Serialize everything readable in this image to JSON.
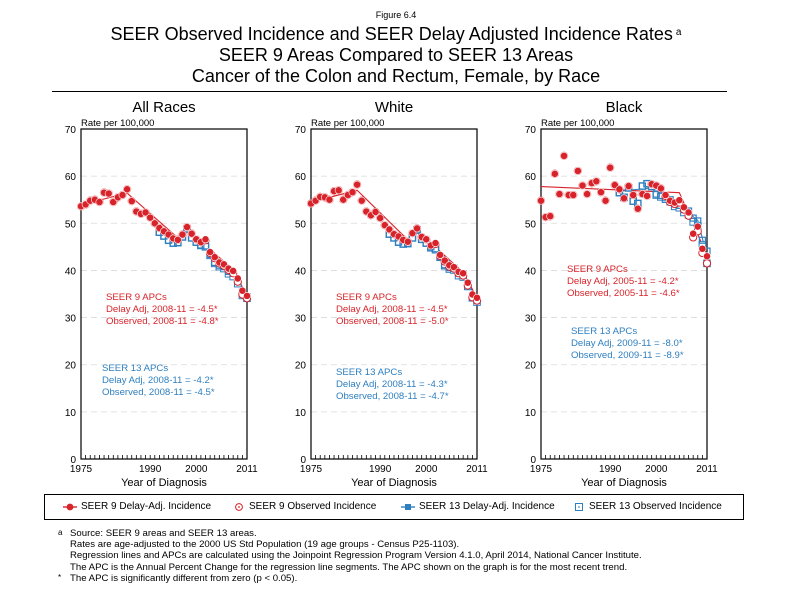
{
  "figure_label": "Figure 6.4",
  "title": {
    "line1": "SEER Observed Incidence and SEER Delay Adjusted Incidence Rates",
    "line1_sup": "a",
    "line2": "SEER 9 Areas Compared to SEER 13 Areas",
    "line3": "Cancer of the Colon and Rectum, Female, by Race"
  },
  "colors": {
    "seer9": "#d8232a",
    "seer13": "#2e7fc0",
    "grid": "#d9d9d9"
  },
  "legend": [
    {
      "label": "SEER 9 Delay-Adj. Incidence",
      "marker": "filled-circle",
      "series": "seer9"
    },
    {
      "label": "SEER 9 Observed Incidence",
      "marker": "open-circle",
      "series": "seer9"
    },
    {
      "label": "SEER 13 Delay-Adj. Incidence",
      "marker": "filled-square",
      "series": "seer13"
    },
    {
      "label": "SEER 13 Observed Incidence",
      "marker": "open-square",
      "series": "seer13"
    }
  ],
  "footnotes": [
    {
      "mark": "a",
      "text": "Source: SEER 9 areas and SEER 13 areas."
    },
    {
      "mark": "",
      "text": "Rates are age-adjusted to the 2000 US Std Population (19 age groups - Census P25-1103)."
    },
    {
      "mark": "",
      "text": "Regression lines and APCs are calculated using the Joinpoint Regression Program Version 4.1.0, April 2014, National Cancer Institute."
    },
    {
      "mark": "",
      "text": "The APC is the Annual Percent Change for the regression line segments. The APC shown on the graph is for the most recent trend."
    },
    {
      "mark": "*",
      "text": "The APC is significantly different from zero (p < 0.05)."
    }
  ],
  "chart_data": [
    {
      "type": "scatter",
      "title": "All Races",
      "xlabel": "Year of Diagnosis",
      "ylabel": "Rate per 100,000",
      "xlim": [
        1975,
        2011
      ],
      "ylim": [
        0,
        70
      ],
      "yticks": [
        0,
        10,
        20,
        30,
        40,
        50,
        60,
        70
      ],
      "xtick_labels": [
        1975,
        1990,
        2000,
        2011
      ],
      "grid": true,
      "seer9_start": 1975,
      "seer13_start": 1992,
      "series": [
        {
          "name": "SEER 9 Delay-Adj. Incidence",
          "values": [
            53.6,
            54.0,
            54.8,
            55.0,
            54.5,
            56.5,
            56.3,
            54.5,
            55.5,
            56.0,
            57.2,
            54.7,
            52.5,
            52.0,
            52.3,
            51.2,
            50.0,
            49.0,
            48.3,
            47.6,
            46.8,
            46.5,
            47.6,
            49.2,
            47.8,
            46.6,
            46.0,
            46.6,
            43.9,
            42.8,
            41.7,
            41.3,
            40.4,
            39.9,
            38.3,
            35.7,
            34.6
          ]
        },
        {
          "name": "SEER 9 Observed Incidence",
          "values": [
            53.6,
            54.0,
            54.8,
            55.0,
            54.5,
            56.5,
            56.3,
            54.5,
            55.5,
            56.0,
            57.2,
            54.7,
            52.5,
            52.0,
            52.3,
            51.2,
            50.0,
            49.0,
            48.3,
            47.6,
            46.8,
            46.5,
            47.6,
            49.2,
            47.8,
            46.6,
            46.0,
            46.4,
            43.7,
            42.6,
            41.5,
            41.0,
            40.1,
            39.4,
            37.6,
            34.9,
            34.1
          ]
        },
        {
          "name": "SEER 13 Delay-Adj. Incidence",
          "values": [
            48.1,
            47.3,
            46.4,
            45.8,
            45.9,
            47.1,
            48.8,
            46.9,
            46.0,
            45.4,
            45.2,
            43.4,
            41.7,
            41.1,
            40.8,
            39.8,
            39.4,
            37.9,
            35.4,
            34.4
          ]
        },
        {
          "name": "SEER 13 Observed Incidence",
          "values": [
            48.1,
            47.3,
            46.4,
            45.8,
            45.9,
            47.1,
            48.8,
            46.9,
            46.0,
            45.3,
            45.0,
            43.2,
            41.5,
            40.8,
            40.4,
            39.3,
            38.7,
            37.2,
            34.7,
            34.1
          ]
        }
      ],
      "regression_seer9": [
        [
          1975,
          53.9
        ],
        [
          1985,
          56.4
        ],
        [
          1996,
          46.9
        ],
        [
          1998,
          48.7
        ],
        [
          2008,
          40.2
        ],
        [
          2011,
          34.6
        ]
      ],
      "regression_seer13": [
        [
          1992,
          48.1
        ],
        [
          1996,
          46.0
        ],
        [
          1998,
          48.3
        ],
        [
          2008,
          39.8
        ],
        [
          2011,
          34.5
        ]
      ],
      "annotations": {
        "seer9": [
          "SEER 9 APCs",
          "Delay Adj, 2008-11 = -4.5*",
          "Observed, 2008-11 = -4.8*"
        ],
        "seer13": [
          "SEER 13 APCs",
          "Delay Adj, 2008-11 = -4.2*",
          "Observed, 2008-11 = -4.5*"
        ]
      }
    },
    {
      "type": "scatter",
      "title": "White",
      "xlabel": "Year of Diagnosis",
      "ylabel": "Rate per 100,000",
      "xlim": [
        1975,
        2011
      ],
      "ylim": [
        0,
        70
      ],
      "yticks": [
        0,
        10,
        20,
        30,
        40,
        50,
        60,
        70
      ],
      "xtick_labels": [
        1975,
        1990,
        2000,
        2011
      ],
      "grid": true,
      "seer9_start": 1975,
      "seer13_start": 1992,
      "series": [
        {
          "name": "SEER 9 Delay-Adj. Incidence",
          "values": [
            54.2,
            54.8,
            55.6,
            55.5,
            55.0,
            56.8,
            57.0,
            55.0,
            56.0,
            56.6,
            58.2,
            54.8,
            52.5,
            51.7,
            52.4,
            51.1,
            49.6,
            48.7,
            47.7,
            47.2,
            46.5,
            46.1,
            47.9,
            48.9,
            47.1,
            46.6,
            45.3,
            45.8,
            43.3,
            42.1,
            41.1,
            40.7,
            39.7,
            39.4,
            37.4,
            34.9,
            34.2
          ]
        },
        {
          "name": "SEER 9 Observed Incidence",
          "values": [
            54.2,
            54.8,
            55.6,
            55.5,
            55.0,
            56.8,
            57.0,
            55.0,
            56.0,
            56.6,
            58.2,
            54.8,
            52.5,
            51.7,
            52.4,
            51.1,
            49.6,
            48.7,
            47.7,
            47.2,
            46.5,
            46.1,
            47.9,
            48.9,
            47.1,
            46.6,
            45.3,
            45.6,
            43.1,
            41.9,
            40.8,
            40.4,
            39.4,
            38.9,
            36.8,
            34.3,
            33.6
          ]
        },
        {
          "name": "SEER 13 Delay-Adj. Incidence",
          "values": [
            47.7,
            46.9,
            46.0,
            45.6,
            45.7,
            46.9,
            48.6,
            46.6,
            45.8,
            45.0,
            44.6,
            43.0,
            41.2,
            40.6,
            40.5,
            39.4,
            39.2,
            37.2,
            34.6,
            33.7
          ]
        },
        {
          "name": "SEER 13 Observed Incidence",
          "values": [
            47.7,
            46.9,
            46.0,
            45.6,
            45.7,
            46.9,
            48.6,
            46.6,
            45.8,
            44.8,
            44.4,
            42.8,
            41.0,
            40.3,
            40.1,
            38.9,
            38.6,
            36.6,
            34.2,
            33.3
          ]
        }
      ],
      "regression_seer9": [
        [
          1975,
          54.5
        ],
        [
          1985,
          57.0
        ],
        [
          1996,
          46.5
        ],
        [
          1998,
          48.5
        ],
        [
          2008,
          39.6
        ],
        [
          2011,
          34.2
        ]
      ],
      "regression_seer13": [
        [
          1992,
          47.8
        ],
        [
          1996,
          45.8
        ],
        [
          1998,
          48.0
        ],
        [
          2008,
          39.4
        ],
        [
          2011,
          33.9
        ]
      ],
      "annotations": {
        "seer9": [
          "SEER 9 APCs",
          "Delay Adj, 2008-11 = -4.5*",
          "Observed, 2008-11 = -5.0*"
        ],
        "seer13": [
          "SEER 13 APCs",
          "Delay Adj, 2008-11 = -4.3*",
          "Observed, 2008-11 = -4.7*"
        ]
      }
    },
    {
      "type": "scatter",
      "title": "Black",
      "xlabel": "Year of Diagnosis",
      "ylabel": "Rate per 100,000",
      "xlim": [
        1975,
        2011
      ],
      "ylim": [
        0,
        70
      ],
      "yticks": [
        0,
        10,
        20,
        30,
        40,
        50,
        60,
        70
      ],
      "xtick_labels": [
        1975,
        1990,
        2000,
        2011
      ],
      "grid": true,
      "seer9_start": 1975,
      "seer13_start": 1992,
      "series": [
        {
          "name": "SEER 9 Delay-Adj. Incidence",
          "values": [
            54.8,
            51.3,
            51.5,
            60.5,
            56.2,
            64.3,
            56.0,
            56.0,
            61.1,
            58.0,
            56.2,
            58.5,
            58.9,
            56.6,
            54.8,
            61.8,
            58.1,
            57.2,
            55.3,
            57.9,
            56.0,
            53.1,
            56.2,
            55.8,
            58.3,
            58.0,
            57.4,
            56.0,
            54.8,
            54.4,
            54.9,
            53.4,
            52.3,
            47.8,
            49.3,
            44.6,
            43.0
          ]
        },
        {
          "name": "SEER 9 Observed Incidence",
          "values": [
            54.8,
            51.3,
            51.5,
            60.5,
            56.2,
            64.3,
            56.0,
            56.0,
            61.1,
            58.0,
            56.2,
            58.5,
            58.9,
            56.6,
            54.8,
            61.8,
            58.1,
            57.2,
            55.3,
            57.9,
            56.0,
            53.1,
            56.2,
            55.8,
            58.3,
            58.0,
            57.4,
            55.8,
            54.5,
            54.1,
            54.4,
            52.9,
            51.6,
            47.0,
            48.3,
            43.7,
            41.5
          ]
        },
        {
          "name": "SEER 13 Delay-Adj. Incidence",
          "values": [
            56.5,
            55.5,
            57.5,
            54.7,
            54.2,
            57.9,
            58.4,
            57.8,
            56.2,
            55.9,
            55.4,
            55.0,
            54.1,
            53.8,
            52.9,
            52.6,
            51.1,
            50.5,
            46.4,
            44.1
          ]
        },
        {
          "name": "SEER 13 Observed Incidence",
          "values": [
            56.5,
            55.5,
            57.5,
            54.7,
            54.2,
            57.9,
            58.4,
            57.8,
            56.0,
            55.6,
            55.1,
            54.6,
            53.6,
            53.3,
            52.3,
            51.8,
            50.3,
            49.5,
            45.4,
            41.5
          ]
        }
      ],
      "regression_seer9": [
        [
          1975,
          57.8
        ],
        [
          2005,
          56.5
        ],
        [
          2011,
          43.2
        ]
      ],
      "regression_seer13": [
        [
          1992,
          56.8
        ],
        [
          2000,
          57.6
        ],
        [
          2009,
          50.6
        ],
        [
          2011,
          43.0
        ]
      ],
      "annotations": {
        "seer9": [
          "SEER 9 APCs",
          "Delay Adj, 2005-11 = -4.2*",
          "Observed, 2005-11 = -4.6*"
        ],
        "seer13": [
          "SEER 13 APCs",
          "Delay Adj, 2009-11 = -8.0*",
          "Observed, 2009-11 = -8.9*"
        ]
      }
    }
  ]
}
